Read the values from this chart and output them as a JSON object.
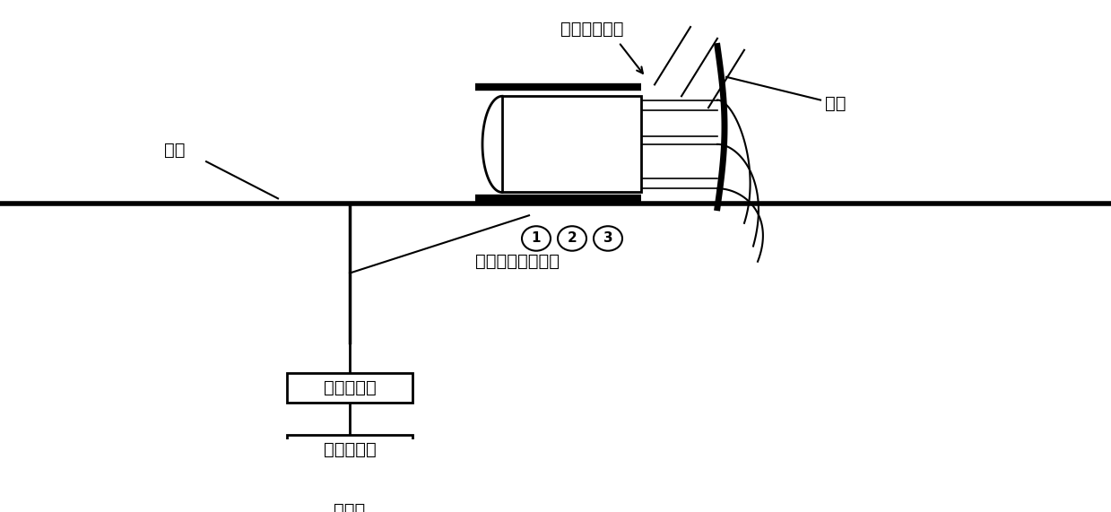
{
  "bg_color": "#ffffff",
  "lc": "#000000",
  "figsize": [
    12.39,
    5.71
  ],
  "dpi": 100,
  "xlim": [
    0,
    1239
  ],
  "ylim": [
    0,
    571
  ],
  "ground_y": 265,
  "label_dimian": "地面",
  "label_jet": "高温高速喷流",
  "label_dangban": "挡板",
  "label_wire": "温度传感器导线束",
  "box1_label": "温度变送器",
  "box2_label": "数据采集卡",
  "box3_label": "计算机",
  "font_size": 14
}
